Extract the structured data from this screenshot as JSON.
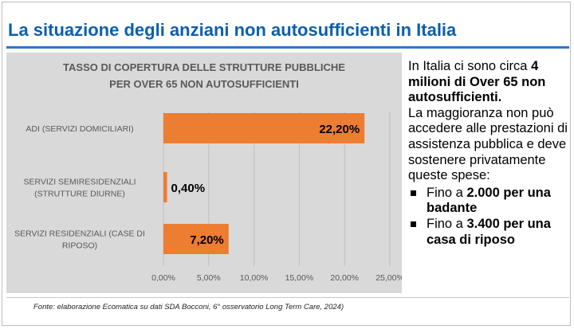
{
  "slide": {
    "title": "La situazione degli anziani non autosufficienti in Italia",
    "source": "Fonte: elaborazione Ecomatica su dati SDA Bocconi, 6° osservatorio Long Term Care, 2024)"
  },
  "side_text": {
    "p1_a": "In Italia ci sono circa ",
    "p1_b": "4 milioni di Over 65 non autosufficienti.",
    "p2": "La maggioranza non può accedere alle prestazioni di assistenza pubblica e deve sostenere privatamente queste spese:",
    "bullets": [
      {
        "a": "Fino a ",
        "b": "2.000 per una badante"
      },
      {
        "a": "Fino a ",
        "b": "3.400 per una casa di riposo"
      }
    ]
  },
  "colors": {
    "bar": "#ed7d31",
    "panel_bg": "#d9d9d9",
    "title": "#0b5fad",
    "title_rule": "#2e78c6"
  },
  "chart_data": {
    "type": "bar",
    "orientation": "horizontal",
    "title_lines": [
      "TASSO DI COPERTURA DELLE STRUTTURE PUBBLICHE",
      "PER OVER 65 NON AUTOSUFFICIENTI"
    ],
    "categories": [
      [
        "ADI (SERVIZI DOMICILIARI)"
      ],
      [
        "SERVIZI SEMIRESIDENZIALI",
        "(STRUTTURE DIURNE)"
      ],
      [
        "SERVIZI RESIDENZIALI (CASE DI",
        "RIPOSO)"
      ]
    ],
    "values": [
      22.2,
      0.4,
      7.2
    ],
    "data_labels": [
      "22,20%",
      "0,40%",
      "7,20%"
    ],
    "xlim": [
      0,
      25
    ],
    "xticks": [
      0,
      5,
      10,
      15,
      20,
      25
    ],
    "xtick_labels": [
      "0,00%",
      "5,00%",
      "10,00%",
      "15,00%",
      "20,00%",
      "25,00%"
    ],
    "grid": true,
    "legend": "none"
  }
}
